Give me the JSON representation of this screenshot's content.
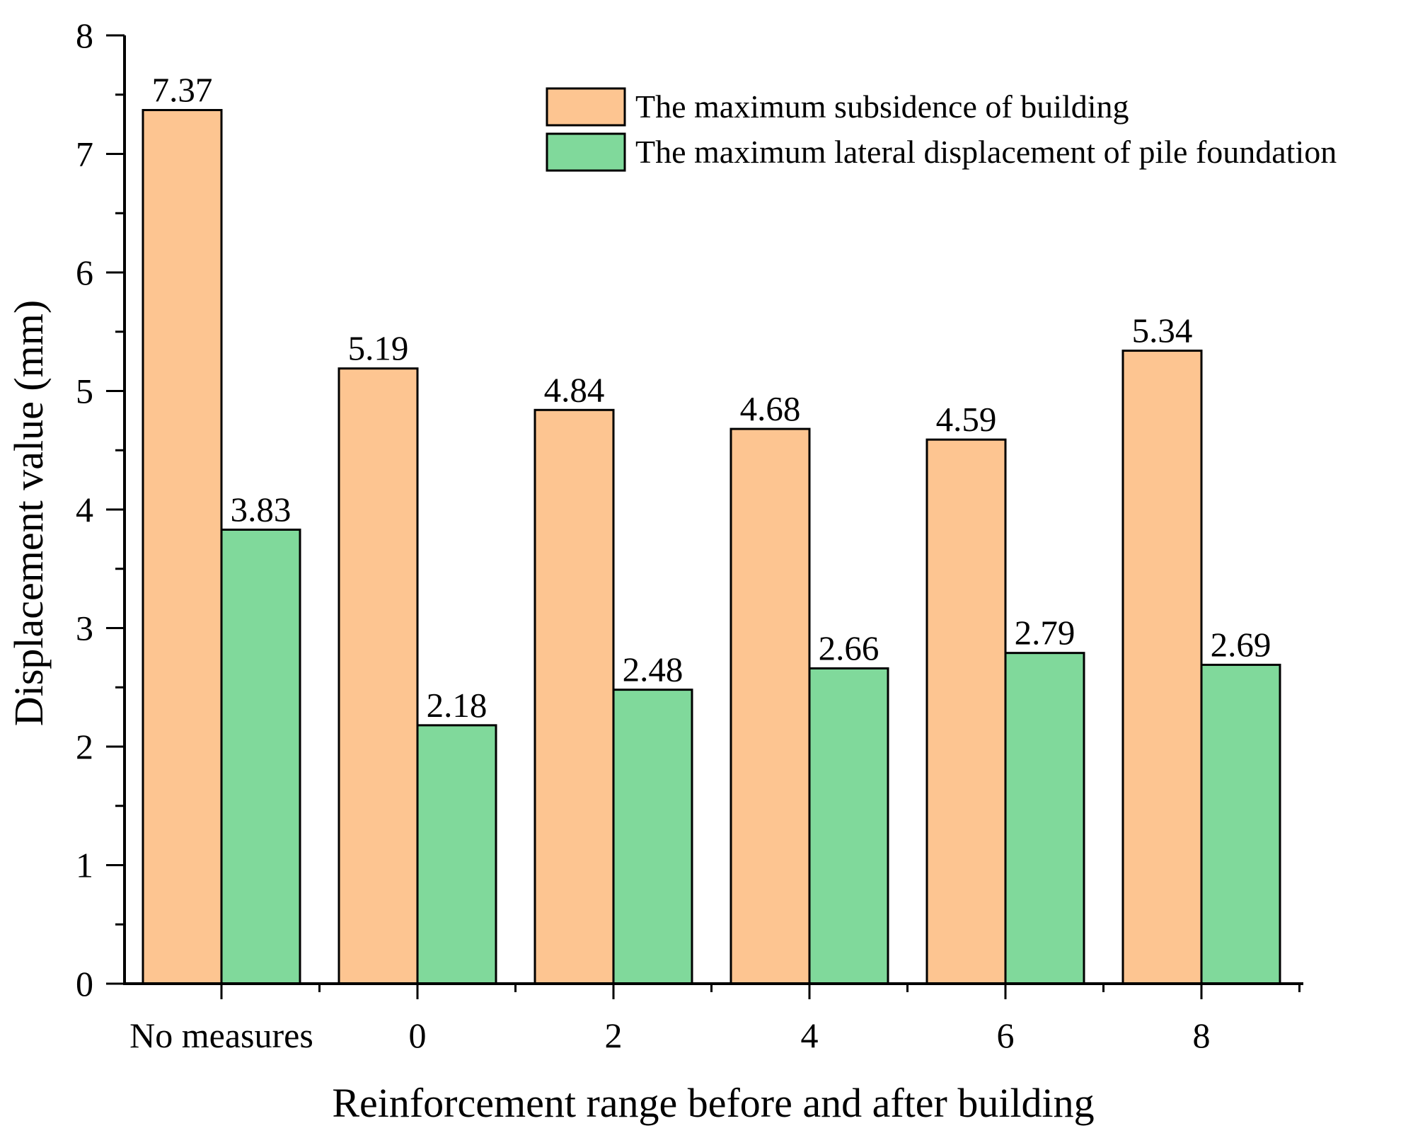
{
  "chart_data": {
    "type": "bar",
    "title": "",
    "xlabel": "Reinforcement range before and after building",
    "ylabel": "Displacement value (mm)",
    "ylim": [
      0,
      8
    ],
    "yticks": [
      "0",
      "1",
      "2",
      "3",
      "4",
      "5",
      "6",
      "7",
      "8"
    ],
    "categories": [
      "No measures",
      "0",
      "2",
      "4",
      "6",
      "8"
    ],
    "legend_position": "top-right",
    "grid": false,
    "series": [
      {
        "name": "The maximum subsidence of building",
        "color": "#FDC591",
        "values": [
          7.37,
          5.19,
          4.84,
          4.68,
          4.59,
          5.34
        ],
        "labels": [
          "7.37",
          "5.19",
          "4.84",
          "4.68",
          "4.59",
          "5.34"
        ]
      },
      {
        "name": "The maximum lateral displacement of pile foundation",
        "color": "#80D99B",
        "values": [
          3.83,
          2.18,
          2.48,
          2.66,
          2.79,
          2.69
        ],
        "labels": [
          "3.83",
          "2.18",
          "2.48",
          "2.66",
          "2.79",
          "2.69"
        ]
      }
    ]
  }
}
